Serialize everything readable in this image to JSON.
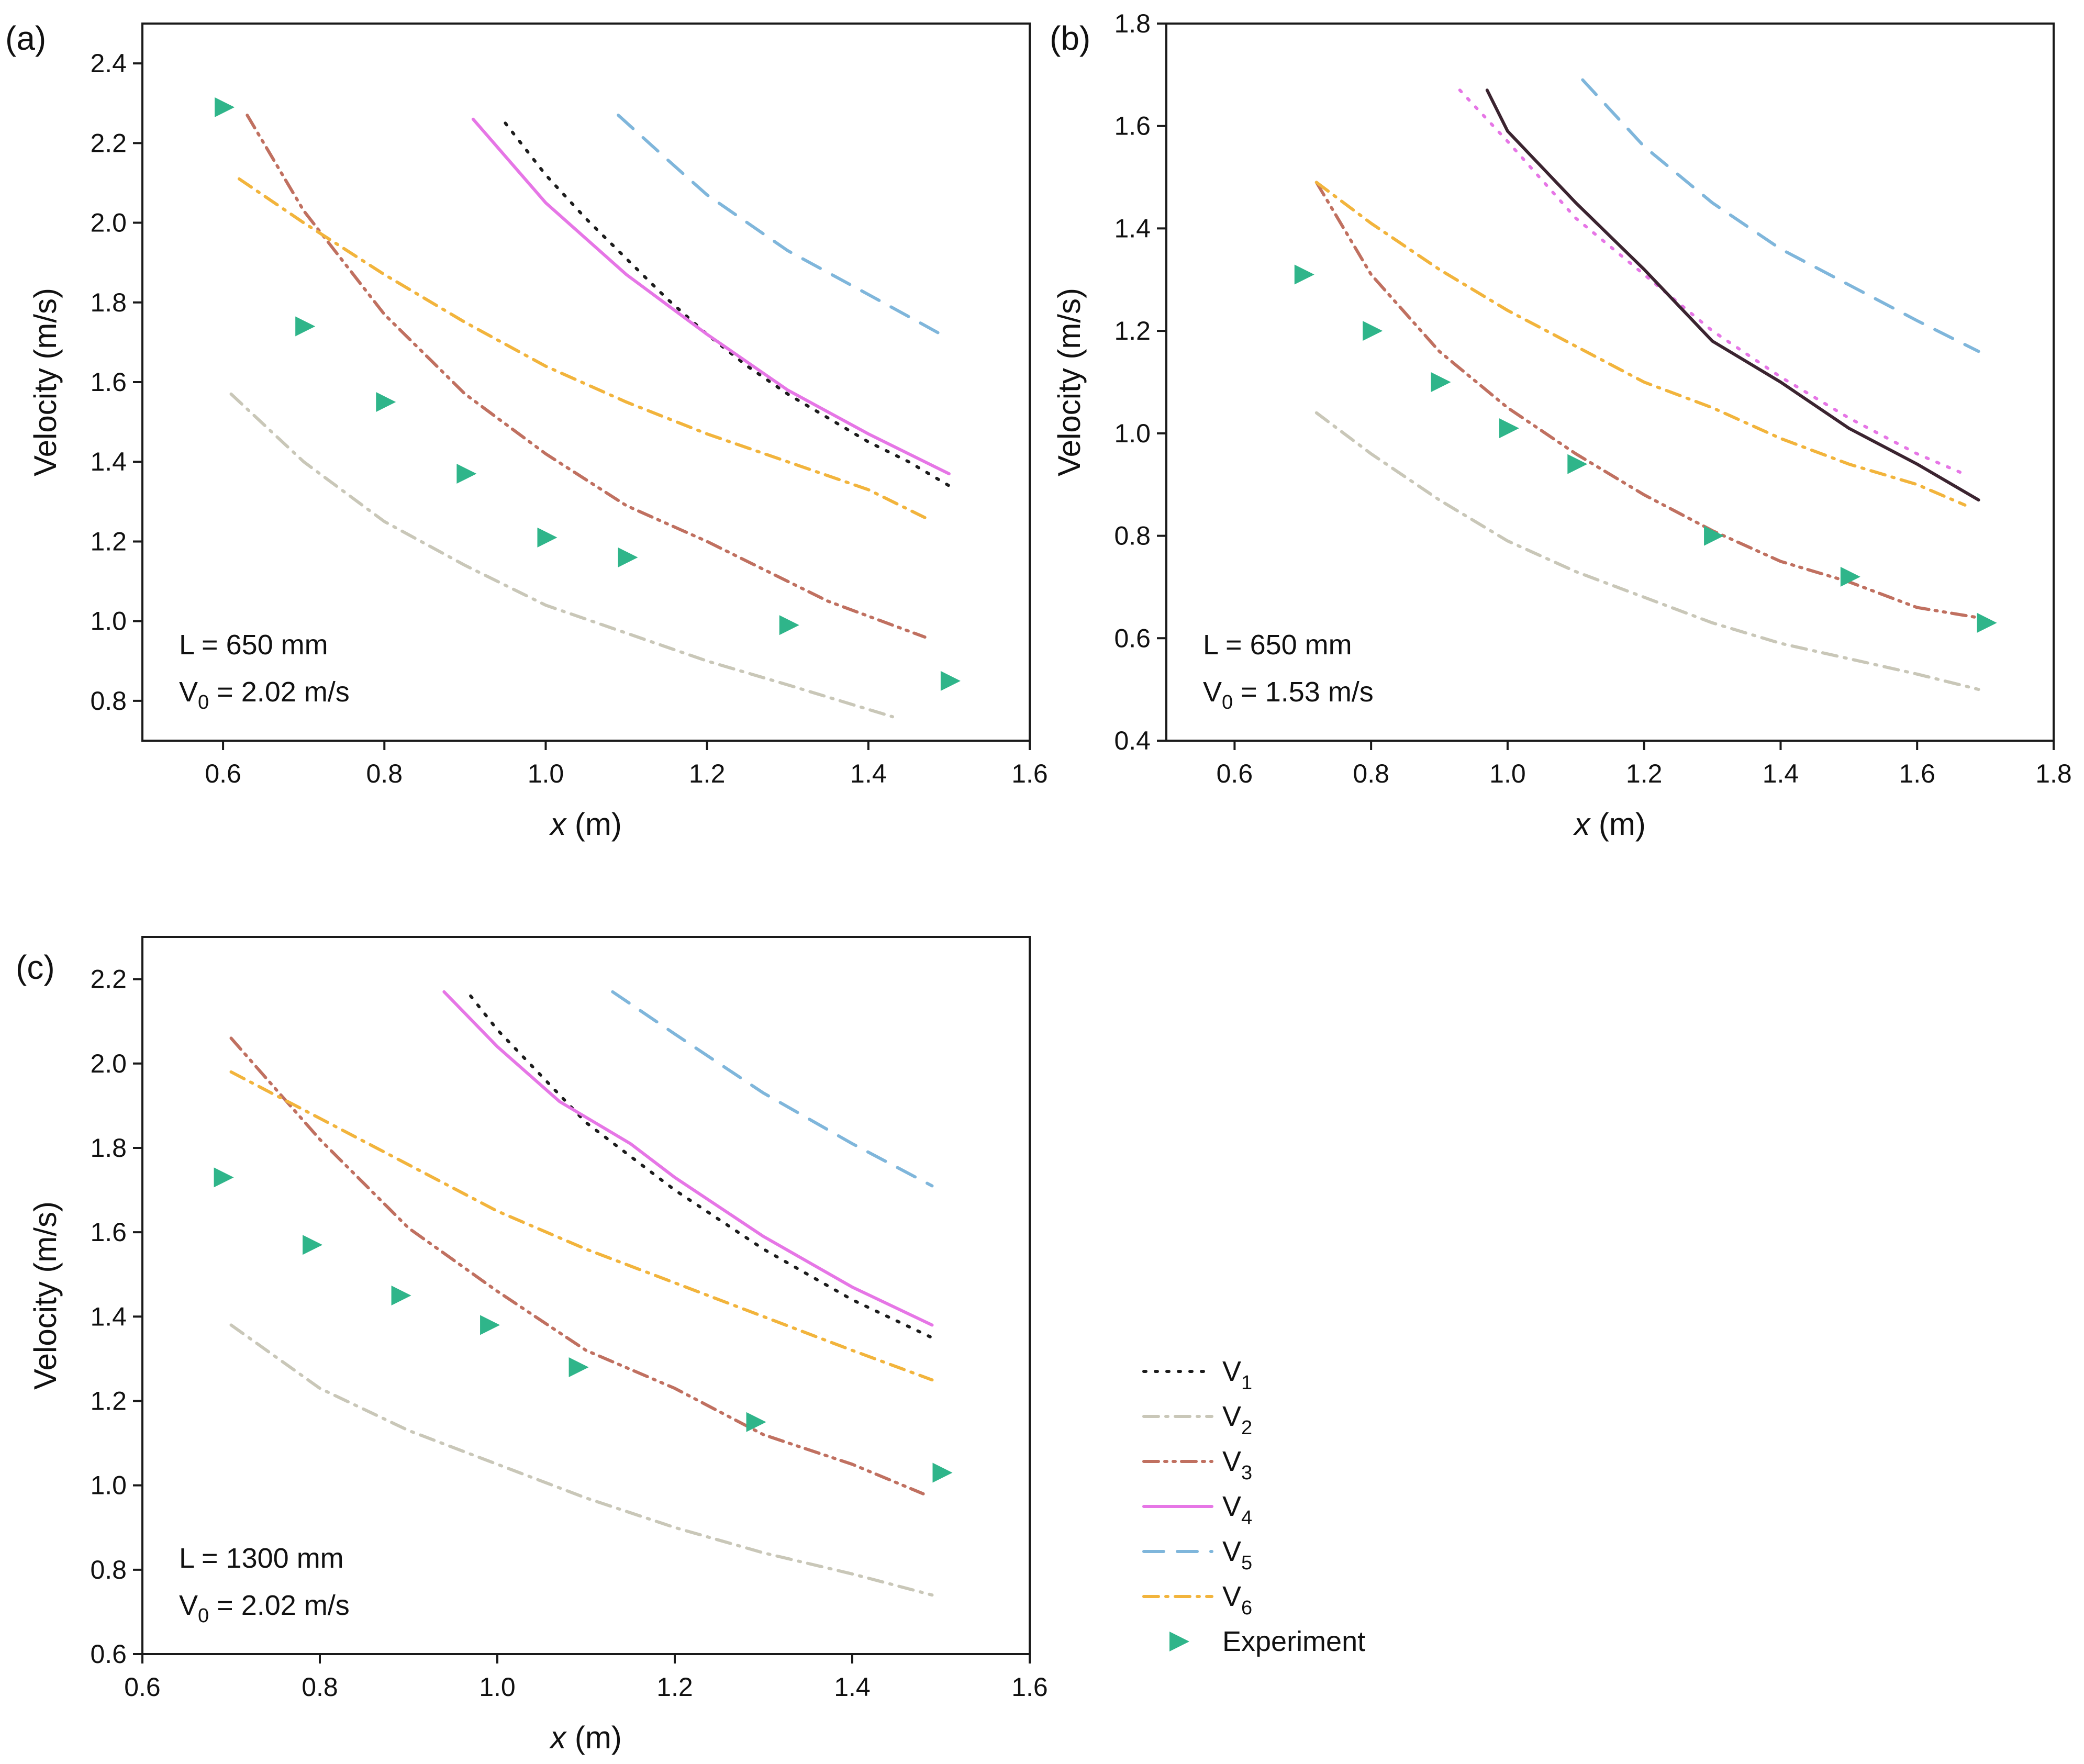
{
  "colors": {
    "V1": "#1c1c1c",
    "V2": "#c9c7b8",
    "V3": "#c07060",
    "V4": "#e676e6",
    "V5": "#7fb6db",
    "V6": "#f2b43c",
    "Experiment": "#2fb58a",
    "V1_panel_b": "#3b2430"
  },
  "legend": [
    {
      "key": "V1",
      "main": "V",
      "sub": "1",
      "style": "dotted"
    },
    {
      "key": "V2",
      "main": "V",
      "sub": "2",
      "style": "dashdot"
    },
    {
      "key": "V3",
      "main": "V",
      "sub": "3",
      "style": "dashdotdot"
    },
    {
      "key": "V4",
      "main": "V",
      "sub": "4",
      "style": "solid"
    },
    {
      "key": "V5",
      "main": "V",
      "sub": "5",
      "style": "dashed"
    },
    {
      "key": "V6",
      "main": "V",
      "sub": "6",
      "style": "dashdot"
    },
    {
      "key": "Experiment",
      "main": "Experiment",
      "sub": "",
      "style": "marker"
    }
  ],
  "chart_data": [
    {
      "id": "a",
      "panel_label": "(a)",
      "type": "line",
      "xlabel_main": "x",
      "xlabel_unit": " (m)",
      "ylabel": "Velocity (m/s)",
      "xlim": [
        0.5,
        1.6
      ],
      "ylim": [
        0.7,
        2.5
      ],
      "xticks": [
        0.6,
        0.8,
        1.0,
        1.2,
        1.4,
        1.6
      ],
      "yticks": [
        0.8,
        1.0,
        1.2,
        1.4,
        1.6,
        1.8,
        2.0,
        2.2,
        2.4
      ],
      "annotation_L": "L = 650 mm",
      "annotation_V0_main": "V",
      "annotation_V0_sub": "0",
      "annotation_V0_rest": " = 2.02 m/s",
      "series": [
        {
          "key": "V1",
          "x": [
            0.95,
            1.0,
            1.05,
            1.1,
            1.15,
            1.2,
            1.25,
            1.3,
            1.35,
            1.4,
            1.45,
            1.5
          ],
          "y": [
            2.25,
            2.12,
            2.01,
            1.91,
            1.81,
            1.72,
            1.64,
            1.57,
            1.51,
            1.45,
            1.4,
            1.34
          ]
        },
        {
          "key": "V2",
          "x": [
            0.61,
            0.7,
            0.8,
            0.9,
            1.0,
            1.1,
            1.2,
            1.3,
            1.43
          ],
          "y": [
            1.57,
            1.4,
            1.25,
            1.14,
            1.04,
            0.97,
            0.9,
            0.84,
            0.76
          ]
        },
        {
          "key": "V3",
          "x": [
            0.63,
            0.7,
            0.8,
            0.9,
            1.0,
            1.1,
            1.2,
            1.3,
            1.35,
            1.47
          ],
          "y": [
            2.27,
            2.03,
            1.77,
            1.57,
            1.42,
            1.29,
            1.2,
            1.1,
            1.05,
            0.96
          ]
        },
        {
          "key": "V4",
          "x": [
            0.91,
            1.0,
            1.05,
            1.1,
            1.2,
            1.3,
            1.4,
            1.5
          ],
          "y": [
            2.26,
            2.05,
            1.96,
            1.87,
            1.72,
            1.58,
            1.47,
            1.37
          ]
        },
        {
          "key": "V5",
          "x": [
            1.09,
            1.15,
            1.2,
            1.3,
            1.4,
            1.49
          ],
          "y": [
            2.27,
            2.16,
            2.07,
            1.93,
            1.82,
            1.72
          ]
        },
        {
          "key": "V6",
          "x": [
            0.62,
            0.7,
            0.8,
            0.9,
            1.0,
            1.1,
            1.2,
            1.3,
            1.4,
            1.47
          ],
          "y": [
            2.11,
            2.0,
            1.87,
            1.75,
            1.64,
            1.55,
            1.47,
            1.4,
            1.33,
            1.26
          ]
        }
      ],
      "experiment": {
        "key": "Experiment",
        "x": [
          0.6,
          0.7,
          0.8,
          0.9,
          1.0,
          1.1,
          1.3,
          1.5
        ],
        "y": [
          2.29,
          1.74,
          1.55,
          1.37,
          1.21,
          1.16,
          0.99,
          0.85
        ]
      }
    },
    {
      "id": "b",
      "panel_label": "(b)",
      "type": "line",
      "xlabel_main": "x",
      "xlabel_unit": " (m)",
      "ylabel": "Velocity (m/s)",
      "xlim": [
        0.5,
        1.8
      ],
      "ylim": [
        0.4,
        1.8
      ],
      "xticks": [
        0.6,
        0.8,
        1.0,
        1.2,
        1.4,
        1.6,
        1.8
      ],
      "yticks": [
        0.4,
        0.6,
        0.8,
        1.0,
        1.2,
        1.4,
        1.6,
        1.8
      ],
      "annotation_L": "L = 650 mm",
      "annotation_V0_main": "V",
      "annotation_V0_sub": "0",
      "annotation_V0_rest": " = 1.53 m/s",
      "series": [
        {
          "key": "V4",
          "style_override": "dotted",
          "x": [
            0.93,
            1.0,
            1.1,
            1.2,
            1.3,
            1.4,
            1.5,
            1.6,
            1.67
          ],
          "y": [
            1.67,
            1.57,
            1.42,
            1.31,
            1.2,
            1.11,
            1.03,
            0.96,
            0.92
          ]
        },
        {
          "key": "V1",
          "style_override": "solid",
          "color_key": "V1_panel_b",
          "x": [
            0.97,
            1.0,
            1.1,
            1.2,
            1.3,
            1.4,
            1.5,
            1.6,
            1.69
          ],
          "y": [
            1.67,
            1.59,
            1.45,
            1.32,
            1.18,
            1.1,
            1.01,
            0.94,
            0.87
          ]
        },
        {
          "key": "V2",
          "x": [
            0.72,
            0.8,
            0.9,
            1.0,
            1.1,
            1.2,
            1.3,
            1.4,
            1.5,
            1.6,
            1.69
          ],
          "y": [
            1.04,
            0.96,
            0.87,
            0.79,
            0.73,
            0.68,
            0.63,
            0.59,
            0.56,
            0.53,
            0.5
          ]
        },
        {
          "key": "V3",
          "x": [
            0.72,
            0.8,
            0.9,
            1.0,
            1.1,
            1.2,
            1.3,
            1.4,
            1.5,
            1.6,
            1.69
          ],
          "y": [
            1.49,
            1.31,
            1.16,
            1.05,
            0.96,
            0.88,
            0.81,
            0.75,
            0.71,
            0.66,
            0.64
          ]
        },
        {
          "key": "V5",
          "x": [
            1.11,
            1.2,
            1.3,
            1.4,
            1.5,
            1.6,
            1.69
          ],
          "y": [
            1.69,
            1.56,
            1.45,
            1.36,
            1.29,
            1.22,
            1.16
          ]
        },
        {
          "key": "V6",
          "x": [
            0.72,
            0.8,
            0.9,
            1.0,
            1.1,
            1.2,
            1.3,
            1.4,
            1.5,
            1.6,
            1.67
          ],
          "y": [
            1.49,
            1.41,
            1.32,
            1.24,
            1.17,
            1.1,
            1.05,
            0.99,
            0.94,
            0.9,
            0.86
          ]
        }
      ],
      "experiment": {
        "key": "Experiment",
        "x": [
          0.7,
          0.8,
          0.9,
          1.0,
          1.1,
          1.3,
          1.5,
          1.7
        ],
        "y": [
          1.31,
          1.2,
          1.1,
          1.01,
          0.94,
          0.8,
          0.72,
          0.63
        ]
      }
    },
    {
      "id": "c",
      "panel_label": "(c)",
      "type": "line",
      "xlabel_main": "x",
      "xlabel_unit": " (m)",
      "ylabel": "Velocity (m/s)",
      "xlim": [
        0.6,
        1.6
      ],
      "ylim": [
        0.6,
        2.3
      ],
      "xticks": [
        0.6,
        0.8,
        1.0,
        1.2,
        1.4,
        1.6
      ],
      "yticks": [
        0.6,
        0.8,
        1.0,
        1.2,
        1.4,
        1.6,
        1.8,
        2.0,
        2.2
      ],
      "annotation_L": "L = 1300 mm",
      "annotation_V0_main": "V",
      "annotation_V0_sub": "0",
      "annotation_V0_rest": " = 2.02 m/s",
      "series": [
        {
          "key": "V1",
          "x": [
            0.97,
            1.0,
            1.1,
            1.2,
            1.3,
            1.4,
            1.49
          ],
          "y": [
            2.16,
            2.08,
            1.86,
            1.7,
            1.56,
            1.44,
            1.35
          ]
        },
        {
          "key": "V2",
          "x": [
            0.7,
            0.8,
            0.9,
            1.0,
            1.1,
            1.2,
            1.3,
            1.4,
            1.49
          ],
          "y": [
            1.38,
            1.23,
            1.13,
            1.05,
            0.97,
            0.9,
            0.84,
            0.79,
            0.74
          ]
        },
        {
          "key": "V3",
          "x": [
            0.7,
            0.8,
            0.9,
            1.0,
            1.1,
            1.2,
            1.3,
            1.4,
            1.48
          ],
          "y": [
            2.06,
            1.82,
            1.61,
            1.46,
            1.32,
            1.23,
            1.12,
            1.05,
            0.98
          ]
        },
        {
          "key": "V4",
          "x": [
            0.94,
            1.0,
            1.07,
            1.15,
            1.2,
            1.3,
            1.4,
            1.49
          ],
          "y": [
            2.17,
            2.04,
            1.91,
            1.81,
            1.73,
            1.59,
            1.47,
            1.38
          ]
        },
        {
          "key": "V5",
          "x": [
            1.13,
            1.2,
            1.3,
            1.4,
            1.49
          ],
          "y": [
            2.17,
            2.07,
            1.93,
            1.81,
            1.71
          ]
        },
        {
          "key": "V6",
          "x": [
            0.7,
            0.8,
            0.9,
            1.0,
            1.1,
            1.2,
            1.3,
            1.4,
            1.49
          ],
          "y": [
            1.98,
            1.87,
            1.76,
            1.65,
            1.56,
            1.48,
            1.4,
            1.32,
            1.25
          ]
        }
      ],
      "experiment": {
        "key": "Experiment",
        "x": [
          0.69,
          0.79,
          0.89,
          0.99,
          1.09,
          1.29,
          1.5
        ],
        "y": [
          1.73,
          1.57,
          1.45,
          1.38,
          1.28,
          1.15,
          1.03
        ]
      }
    }
  ]
}
